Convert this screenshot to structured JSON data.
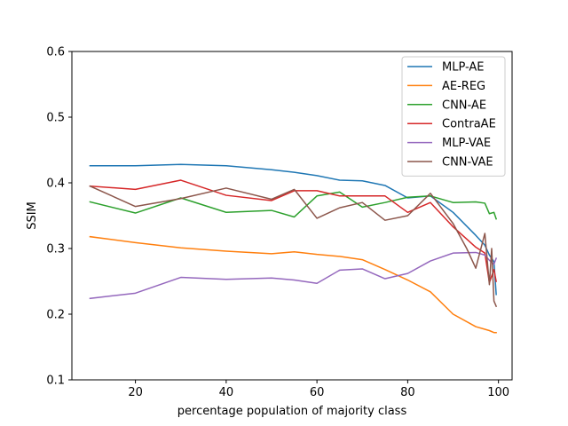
{
  "chart_data": {
    "type": "line",
    "title": "",
    "xlabel": "percentage population of majority class",
    "ylabel": "SSIM",
    "xlim": [
      6,
      103
    ],
    "ylim": [
      0.1,
      0.6
    ],
    "xticks": [
      20,
      40,
      60,
      80,
      100
    ],
    "yticks": [
      0.1,
      0.2,
      0.3,
      0.4,
      0.5,
      0.6
    ],
    "xtick_labels": [
      "20",
      "40",
      "60",
      "80",
      "100"
    ],
    "ytick_labels": [
      "0.1",
      "0.2",
      "0.3",
      "0.4",
      "0.5",
      "0.6"
    ],
    "grid": false,
    "legend_position": "top-right",
    "series": [
      {
        "name": "MLP-AE",
        "color": "#1f77b4",
        "points": [
          [
            10,
            0.426
          ],
          [
            20,
            0.426
          ],
          [
            30,
            0.428
          ],
          [
            40,
            0.426
          ],
          [
            50,
            0.42
          ],
          [
            55,
            0.416
          ],
          [
            60,
            0.411
          ],
          [
            65,
            0.404
          ],
          [
            70,
            0.403
          ],
          [
            75,
            0.396
          ],
          [
            80,
            0.377
          ],
          [
            85,
            0.38
          ],
          [
            90,
            0.355
          ],
          [
            95,
            0.32
          ],
          [
            97,
            0.305
          ],
          [
            98,
            0.29
          ],
          [
            99,
            0.28
          ],
          [
            99.5,
            0.23
          ]
        ]
      },
      {
        "name": "AE-REG",
        "color": "#ff7f0e",
        "points": [
          [
            10,
            0.318
          ],
          [
            20,
            0.309
          ],
          [
            30,
            0.301
          ],
          [
            40,
            0.296
          ],
          [
            50,
            0.292
          ],
          [
            55,
            0.295
          ],
          [
            60,
            0.291
          ],
          [
            65,
            0.288
          ],
          [
            70,
            0.283
          ],
          [
            75,
            0.268
          ],
          [
            80,
            0.252
          ],
          [
            85,
            0.234
          ],
          [
            90,
            0.2
          ],
          [
            95,
            0.181
          ],
          [
            97,
            0.177
          ],
          [
            98,
            0.175
          ],
          [
            99,
            0.172
          ],
          [
            99.5,
            0.172
          ]
        ]
      },
      {
        "name": "CNN-AE",
        "color": "#2ca02c",
        "points": [
          [
            10,
            0.371
          ],
          [
            20,
            0.354
          ],
          [
            30,
            0.377
          ],
          [
            40,
            0.355
          ],
          [
            50,
            0.358
          ],
          [
            55,
            0.348
          ],
          [
            60,
            0.38
          ],
          [
            65,
            0.386
          ],
          [
            70,
            0.363
          ],
          [
            75,
            0.37
          ],
          [
            80,
            0.378
          ],
          [
            85,
            0.38
          ],
          [
            90,
            0.37
          ],
          [
            95,
            0.371
          ],
          [
            97,
            0.369
          ],
          [
            98,
            0.353
          ],
          [
            99,
            0.355
          ],
          [
            99.5,
            0.345
          ]
        ]
      },
      {
        "name": "ContraAE",
        "color": "#d62728",
        "points": [
          [
            10,
            0.395
          ],
          [
            20,
            0.39
          ],
          [
            30,
            0.404
          ],
          [
            40,
            0.381
          ],
          [
            50,
            0.373
          ],
          [
            55,
            0.388
          ],
          [
            60,
            0.388
          ],
          [
            65,
            0.38
          ],
          [
            70,
            0.38
          ],
          [
            75,
            0.38
          ],
          [
            80,
            0.355
          ],
          [
            85,
            0.37
          ],
          [
            90,
            0.333
          ],
          [
            95,
            0.302
          ],
          [
            97,
            0.293
          ],
          [
            98,
            0.248
          ],
          [
            99,
            0.268
          ],
          [
            99.5,
            0.25
          ]
        ]
      },
      {
        "name": "MLP-VAE",
        "color": "#9467bd",
        "points": [
          [
            10,
            0.224
          ],
          [
            20,
            0.232
          ],
          [
            30,
            0.256
          ],
          [
            40,
            0.253
          ],
          [
            50,
            0.255
          ],
          [
            55,
            0.252
          ],
          [
            60,
            0.247
          ],
          [
            65,
            0.267
          ],
          [
            70,
            0.269
          ],
          [
            75,
            0.254
          ],
          [
            80,
            0.262
          ],
          [
            85,
            0.281
          ],
          [
            90,
            0.293
          ],
          [
            95,
            0.294
          ],
          [
            97,
            0.29
          ],
          [
            98,
            0.282
          ],
          [
            99,
            0.276
          ],
          [
            99.5,
            0.285
          ]
        ]
      },
      {
        "name": "CNN-VAE",
        "color": "#8c564b",
        "points": [
          [
            10,
            0.395
          ],
          [
            20,
            0.364
          ],
          [
            30,
            0.376
          ],
          [
            40,
            0.392
          ],
          [
            50,
            0.375
          ],
          [
            55,
            0.39
          ],
          [
            60,
            0.346
          ],
          [
            65,
            0.362
          ],
          [
            70,
            0.37
          ],
          [
            75,
            0.343
          ],
          [
            80,
            0.35
          ],
          [
            85,
            0.384
          ],
          [
            90,
            0.338
          ],
          [
            93,
            0.3
          ],
          [
            95,
            0.27
          ],
          [
            97,
            0.323
          ],
          [
            98,
            0.245
          ],
          [
            98.5,
            0.3
          ],
          [
            99,
            0.22
          ],
          [
            99.5,
            0.212
          ]
        ]
      }
    ]
  }
}
